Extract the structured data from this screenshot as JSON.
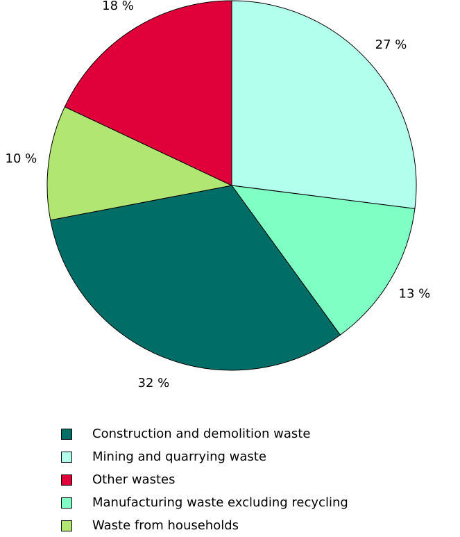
{
  "chart_data": {
    "type": "pie",
    "title": "",
    "slices": [
      {
        "label": "Mining and quarrying waste",
        "value": 27,
        "display": "27 %",
        "color": "#b3ffee"
      },
      {
        "label": "Manufacturing waste excluding recycling",
        "value": 13,
        "display": "13 %",
        "color": "#7fffc4"
      },
      {
        "label": "Construction and demolition waste",
        "value": 32,
        "display": "32 %",
        "color": "#006e66"
      },
      {
        "label": "Waste from households",
        "value": 10,
        "display": "10 %",
        "color": "#b1e673"
      },
      {
        "label": "Other wastes",
        "value": 18,
        "display": "18 %",
        "color": "#e0003a"
      }
    ],
    "legend": {
      "placement": "bottom",
      "entries": [
        {
          "label": "Construction and demolition waste",
          "color": "#006e66"
        },
        {
          "label": "Mining and quarrying waste",
          "color": "#b3ffee"
        },
        {
          "label": "Other wastes",
          "color": "#e0003a"
        },
        {
          "label": "Manufacturing waste excluding recycling",
          "color": "#7fffc4"
        },
        {
          "label": "Waste from households",
          "color": "#b1e673"
        }
      ]
    }
  }
}
